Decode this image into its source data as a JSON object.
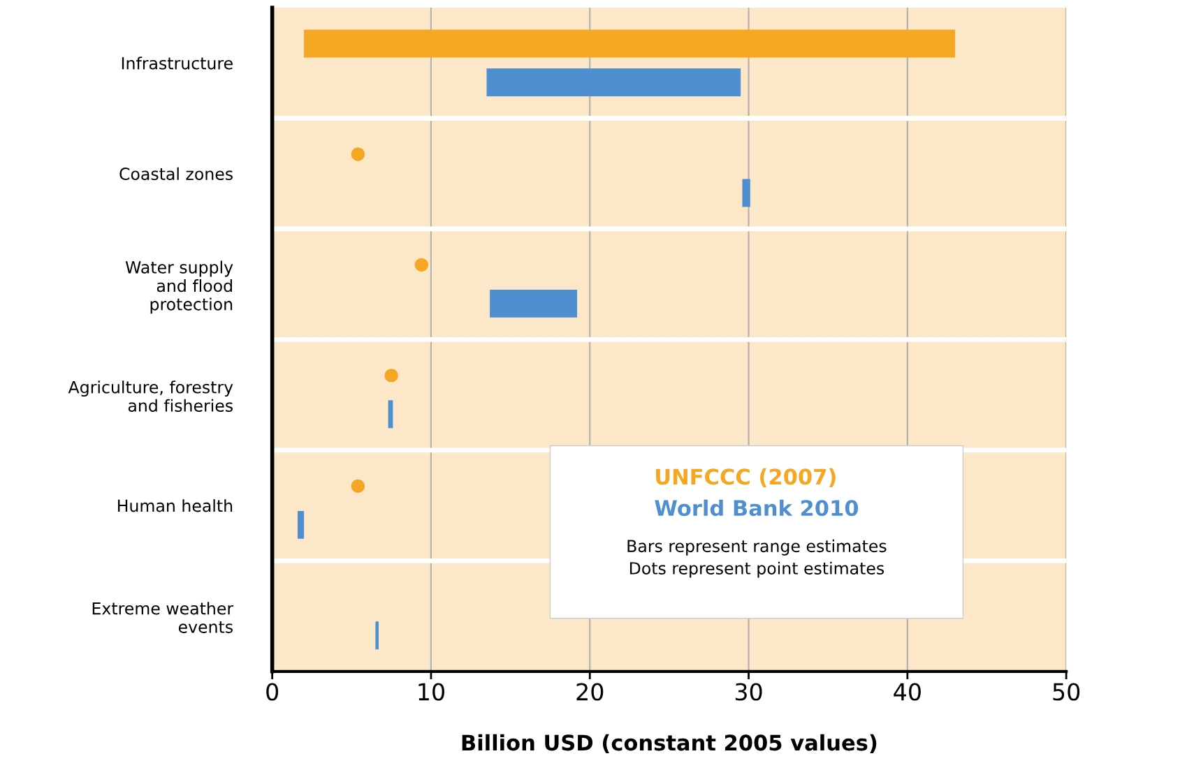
{
  "chart_data": {
    "type": "bar",
    "orientation": "horizontal",
    "categories": [
      "Infrastructure",
      "Coastal zones",
      "Water supply\nand flood\nprotection",
      "Agriculture, forestry\nand fisheries",
      "Human health",
      "Extreme weather\nevents"
    ],
    "series": [
      {
        "name": "UNFCCC (2007)",
        "color": "#f5a623",
        "base": [
          2.0,
          null,
          null,
          null,
          null,
          null
        ],
        "values": [
          41.0,
          null,
          null,
          null,
          null,
          null
        ]
      },
      {
        "type": "scatter",
        "color": "#f5a623",
        "values": [
          null,
          5.4,
          9.4,
          7.5,
          5.4,
          null
        ]
      },
      {
        "name": "World Bank 2010",
        "color": "#4f8fcf",
        "base": [
          13.5,
          29.6,
          13.7,
          7.3,
          1.6,
          6.5
        ],
        "values": [
          16.0,
          0.5,
          5.5,
          0.3,
          0.4,
          0.2
        ]
      }
    ],
    "xlabel": "Billion USD (constant 2005 values)",
    "xlim": [
      0,
      50
    ],
    "xticks": [
      0,
      10,
      20,
      30,
      40,
      50
    ],
    "grid": "x",
    "legend": "bottom right",
    "marker": "circle",
    "annotations": [
      "Bars represent range estimates\nDots represent point estimates"
    ]
  }
}
